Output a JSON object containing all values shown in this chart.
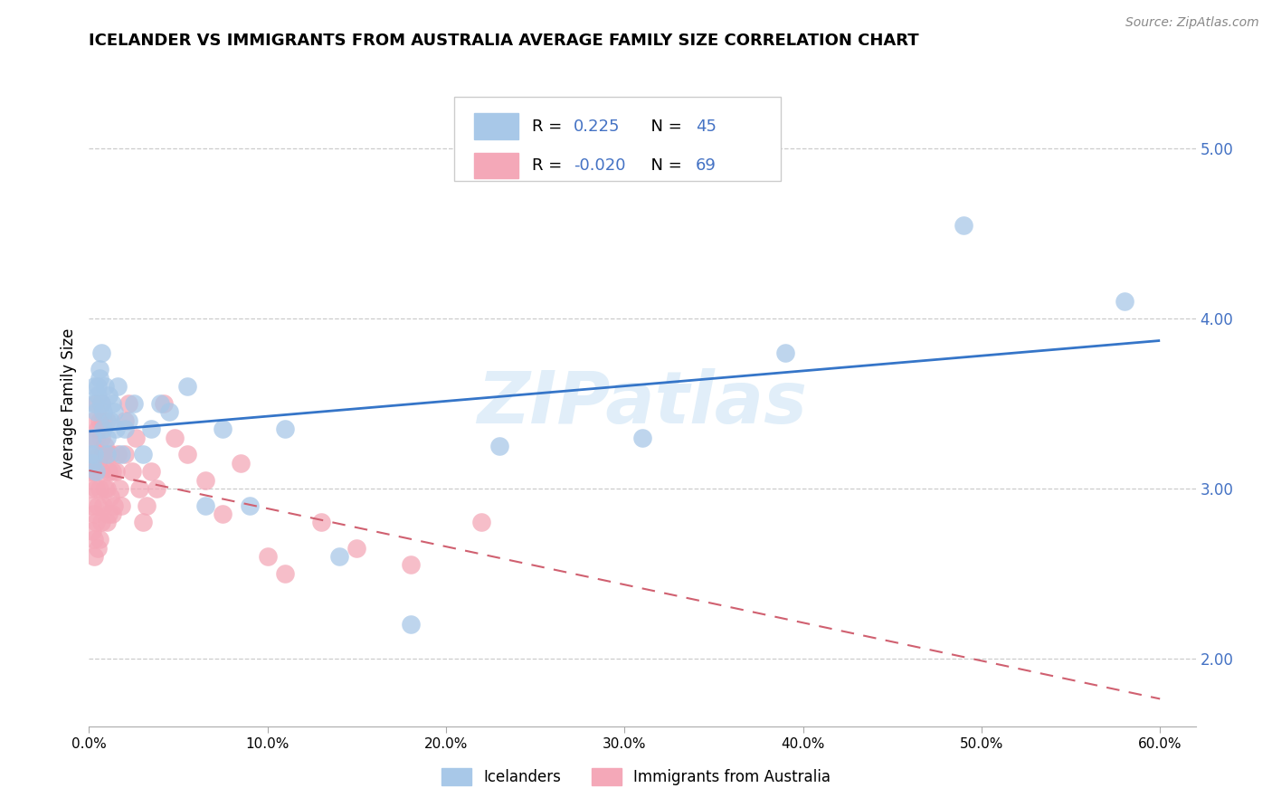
{
  "title": "ICELANDER VS IMMIGRANTS FROM AUSTRALIA AVERAGE FAMILY SIZE CORRELATION CHART",
  "source": "Source: ZipAtlas.com",
  "ylabel": "Average Family Size",
  "yticks": [
    2.0,
    3.0,
    4.0,
    5.0
  ],
  "xlim": [
    0.0,
    0.62
  ],
  "ylim": [
    1.6,
    5.4
  ],
  "blue_fill": "#a8c8e8",
  "pink_fill": "#f4a8b8",
  "blue_line": "#3575c8",
  "pink_line": "#d06070",
  "watermark": "ZIPatlas",
  "icelanders_x": [
    0.001,
    0.002,
    0.002,
    0.003,
    0.003,
    0.003,
    0.004,
    0.004,
    0.005,
    0.005,
    0.006,
    0.006,
    0.007,
    0.007,
    0.008,
    0.008,
    0.009,
    0.01,
    0.01,
    0.011,
    0.012,
    0.013,
    0.014,
    0.015,
    0.016,
    0.018,
    0.02,
    0.022,
    0.025,
    0.03,
    0.035,
    0.04,
    0.045,
    0.055,
    0.065,
    0.075,
    0.09,
    0.11,
    0.14,
    0.18,
    0.23,
    0.31,
    0.39,
    0.49,
    0.58
  ],
  "icelanders_y": [
    3.2,
    3.3,
    3.15,
    3.5,
    3.6,
    3.2,
    3.1,
    3.45,
    3.6,
    3.55,
    3.7,
    3.65,
    3.8,
    3.5,
    3.45,
    3.35,
    3.6,
    3.2,
    3.3,
    3.55,
    3.4,
    3.5,
    3.45,
    3.35,
    3.6,
    3.2,
    3.35,
    3.4,
    3.5,
    3.2,
    3.35,
    3.5,
    3.45,
    3.6,
    2.9,
    3.35,
    2.9,
    3.35,
    2.6,
    2.2,
    3.25,
    3.3,
    3.8,
    4.55,
    4.1
  ],
  "australia_x": [
    0.001,
    0.001,
    0.001,
    0.002,
    0.002,
    0.002,
    0.003,
    0.003,
    0.003,
    0.003,
    0.003,
    0.004,
    0.004,
    0.004,
    0.004,
    0.005,
    0.005,
    0.005,
    0.005,
    0.006,
    0.006,
    0.006,
    0.006,
    0.007,
    0.007,
    0.007,
    0.007,
    0.008,
    0.008,
    0.008,
    0.009,
    0.009,
    0.01,
    0.01,
    0.01,
    0.01,
    0.011,
    0.011,
    0.012,
    0.012,
    0.013,
    0.013,
    0.014,
    0.015,
    0.016,
    0.017,
    0.018,
    0.02,
    0.02,
    0.022,
    0.024,
    0.026,
    0.028,
    0.03,
    0.032,
    0.035,
    0.038,
    0.042,
    0.048,
    0.055,
    0.065,
    0.075,
    0.085,
    0.1,
    0.11,
    0.13,
    0.15,
    0.18,
    0.22
  ],
  "australia_y": [
    3.3,
    3.1,
    3.0,
    3.2,
    2.9,
    2.75,
    3.4,
    3.1,
    2.85,
    2.7,
    2.6,
    3.5,
    3.3,
    3.0,
    2.8,
    3.35,
    3.15,
    2.9,
    2.65,
    3.4,
    3.2,
    3.0,
    2.7,
    3.5,
    3.3,
    3.1,
    2.8,
    3.4,
    3.2,
    2.9,
    3.25,
    3.0,
    3.4,
    3.2,
    3.0,
    2.8,
    3.1,
    2.85,
    3.2,
    2.95,
    3.1,
    2.85,
    2.9,
    3.1,
    3.2,
    3.0,
    2.9,
    3.4,
    3.2,
    3.5,
    3.1,
    3.3,
    3.0,
    2.8,
    2.9,
    3.1,
    3.0,
    3.5,
    3.3,
    3.2,
    3.05,
    2.85,
    3.15,
    2.6,
    2.5,
    2.8,
    2.65,
    2.55,
    2.8
  ],
  "pink_line_xlim": [
    0.0,
    0.6
  ]
}
